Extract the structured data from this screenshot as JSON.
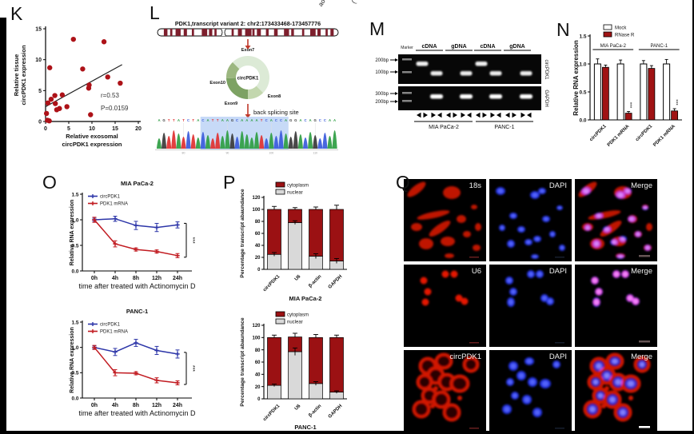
{
  "figure": {
    "panel_labels": {
      "K": "K",
      "L": "L",
      "M": "M",
      "N": "N",
      "O": "O",
      "P": "P",
      "Q": "Q"
    },
    "top_fragments": [
      "ao",
      "("
    ]
  },
  "panel_K": {
    "label": "K",
    "chart_data": {
      "type": "scatter",
      "xlabel_lines": [
        "Relative exosomal",
        "circPDK1 expression"
      ],
      "ylabel_lines": [
        "Relative tissue",
        "circPDK1 expression"
      ],
      "xlim": [
        0,
        20
      ],
      "ylim": [
        0,
        15
      ],
      "xticks": [
        0,
        5,
        10,
        15,
        20
      ],
      "yticks": [
        0,
        5,
        10,
        15
      ],
      "points": [
        [
          0.9,
          8.7
        ],
        [
          6.0,
          13.3
        ],
        [
          12.6,
          12.9
        ],
        [
          8.0,
          8.5
        ],
        [
          13.4,
          7.2
        ],
        [
          16.1,
          6.2
        ],
        [
          9.4,
          5.9
        ],
        [
          9.3,
          5.4
        ],
        [
          3.6,
          4.3
        ],
        [
          2.0,
          4.2
        ],
        [
          1.2,
          3.6
        ],
        [
          0.5,
          3.0
        ],
        [
          2.1,
          2.9
        ],
        [
          4.6,
          2.4
        ],
        [
          3.0,
          2.1
        ],
        [
          2.4,
          1.9
        ],
        [
          0.2,
          1.3
        ],
        [
          9.7,
          1.1
        ],
        [
          0.4,
          0.2
        ],
        [
          0.8,
          0.1
        ]
      ],
      "trendline": [
        [
          0,
          2.4
        ],
        [
          16.5,
          9.2
        ]
      ],
      "stats": [
        "r=0.53",
        "P=0.0159"
      ],
      "point_color": "#ad1218"
    }
  },
  "panel_L": {
    "label": "L",
    "title": "PDK1,transcript variant 2: chr2:173433468-173457776",
    "circle_label": "circPDK1",
    "exon_labels": [
      "Exon7",
      "Exon8",
      "Exon9",
      "Exon10"
    ],
    "back_splice_label": "back splicing site",
    "sequence": "AGTTATCTACATTAAGCAAAATCACCAGGACAGCCAA",
    "highlight": [
      9,
      26
    ],
    "base_colors": {
      "A": "#2f9e44",
      "C": "#3b5bdb",
      "G": "#3b3b3b",
      "T": "#e03131"
    },
    "band_color": "#7d1f2d",
    "ruler_labels": [
      "80",
      "90",
      "100",
      "110"
    ]
  },
  "panel_M": {
    "label": "M",
    "marker_label": "Marker",
    "lane_headers": [
      "cDNA",
      "gDNA",
      "cDNA",
      "gDNA"
    ],
    "size_labels_top": [
      "200bp",
      "100bp"
    ],
    "size_labels_bottom": [
      "300bp",
      "200bp"
    ],
    "gene_labels": [
      "circPDK1",
      "GAPDH"
    ],
    "group_labels": [
      "MIA PaCa-2",
      "PANC-1"
    ],
    "top_gel_bands": [
      1,
      2,
      0,
      2,
      1,
      2,
      0,
      2
    ],
    "bottom_gel_bands": [
      0,
      1,
      0,
      1,
      0,
      1,
      0,
      1
    ],
    "primer_icons": [
      "divergent",
      "convergent",
      "divergent",
      "convergent",
      "divergent",
      "convergent",
      "divergent",
      "convergent"
    ]
  },
  "panel_N": {
    "label": "N",
    "chart_data": {
      "type": "bar",
      "ylabel": "Relative RNA expression",
      "ylim": [
        0,
        1.5
      ],
      "yticks": [
        "0.0",
        "0.5",
        "1.0",
        "1.5"
      ],
      "legend": [
        {
          "name": "Mock",
          "color": "#ffffff"
        },
        {
          "name": "RNase R",
          "color": "#a01314"
        }
      ],
      "group_headers": [
        "MIA PaCa-2",
        "PANC-1"
      ],
      "categories": [
        "circPDK1",
        "PDK1 mRNA",
        "circPDK1",
        "PDK1 mRNA"
      ],
      "series": [
        {
          "name": "Mock",
          "values": [
            1.0,
            1.0,
            1.0,
            1.0
          ],
          "errors": [
            0.09,
            0.07,
            0.06,
            0.08
          ]
        },
        {
          "name": "RNase R",
          "values": [
            0.94,
            0.12,
            0.92,
            0.16
          ],
          "errors": [
            0.04,
            0.03,
            0.05,
            0.04
          ]
        }
      ],
      "significance": [
        {
          "category": 1,
          "label": "***"
        },
        {
          "category": 3,
          "label": "***"
        }
      ]
    }
  },
  "panel_O": {
    "label": "O",
    "xlabel": "time after treated with Actinomycin D",
    "ylabel": "Relative RNA expression",
    "charts": [
      {
        "type": "line",
        "title": "MIA PaCa-2",
        "x_labels": [
          "0h",
          "4h",
          "8h",
          "12h",
          "24h"
        ],
        "ylim": [
          0,
          1.5
        ],
        "yticks": [
          "0.0",
          "0.5",
          "1.0",
          "1.5"
        ],
        "series": [
          {
            "name": "circPDK1",
            "color": "#2c35a8",
            "values": [
              1.0,
              1.02,
              0.89,
              0.85,
              0.9
            ],
            "errors": [
              0.03,
              0.05,
              0.08,
              0.08,
              0.06
            ]
          },
          {
            "name": "PDK1 mRNA",
            "color": "#c11a20",
            "values": [
              1.0,
              0.53,
              0.42,
              0.38,
              0.3
            ],
            "errors": [
              0.05,
              0.06,
              0.03,
              0.03,
              0.04
            ]
          }
        ],
        "significance": "***"
      },
      {
        "type": "line",
        "title": "PANC-1",
        "x_labels": [
          "0h",
          "4h",
          "8h",
          "12h",
          "24h"
        ],
        "ylim": [
          0,
          1.5
        ],
        "yticks": [
          "0.0",
          "0.5",
          "1.0",
          "1.5"
        ],
        "series": [
          {
            "name": "circPDK1",
            "color": "#2c35a8",
            "values": [
              1.0,
              0.91,
              1.09,
              0.94,
              0.87
            ],
            "errors": [
              0.03,
              0.07,
              0.07,
              0.08,
              0.08
            ]
          },
          {
            "name": "PDK1 mRNA",
            "color": "#c11a20",
            "values": [
              1.0,
              0.5,
              0.49,
              0.35,
              0.3
            ],
            "errors": [
              0.04,
              0.06,
              0.03,
              0.05,
              0.04
            ]
          }
        ],
        "significance": "***"
      }
    ]
  },
  "panel_P": {
    "label": "P",
    "ylabel": "Percentage transcript abaundance",
    "legend": [
      {
        "name": "cytoplasm",
        "color": "#9b1113"
      },
      {
        "name": "nuclear",
        "color": "#d9d9d9"
      }
    ],
    "charts": [
      {
        "type": "stacked-bar",
        "title": "MIA PaCa-2",
        "categories": [
          "circPDK1",
          "U6",
          "β-actin",
          "GAPDH"
        ],
        "ylim": [
          0,
          120
        ],
        "yticks": [
          0,
          20,
          40,
          60,
          80,
          100,
          120
        ],
        "nuclear": [
          25,
          78,
          22,
          14
        ],
        "cytoplasm": [
          75,
          22,
          78,
          86
        ],
        "total_errors": [
          5,
          3,
          4,
          7
        ],
        "nuclear_errors": [
          3,
          3,
          4,
          4
        ]
      },
      {
        "type": "stacked-bar",
        "title": "PANC-1",
        "categories": [
          "circPDK1",
          "U6",
          "β-actin",
          "GAPDH"
        ],
        "ylim": [
          0,
          120
        ],
        "yticks": [
          0,
          20,
          40,
          60,
          80,
          100,
          120
        ],
        "nuclear": [
          22,
          77,
          25,
          11
        ],
        "cytoplasm": [
          78,
          24,
          75,
          89
        ],
        "total_errors": [
          4,
          6,
          5,
          4
        ],
        "nuclear_errors": [
          2,
          6,
          3,
          2
        ]
      }
    ]
  },
  "panel_Q": {
    "label": "Q",
    "rows": [
      {
        "cells": [
          "18s",
          "DAPI",
          "Merge"
        ]
      },
      {
        "cells": [
          "U6",
          "DAPI",
          "Merge"
        ]
      },
      {
        "cells": [
          "circPDK1",
          "DAPI",
          "Merge"
        ]
      }
    ]
  }
}
